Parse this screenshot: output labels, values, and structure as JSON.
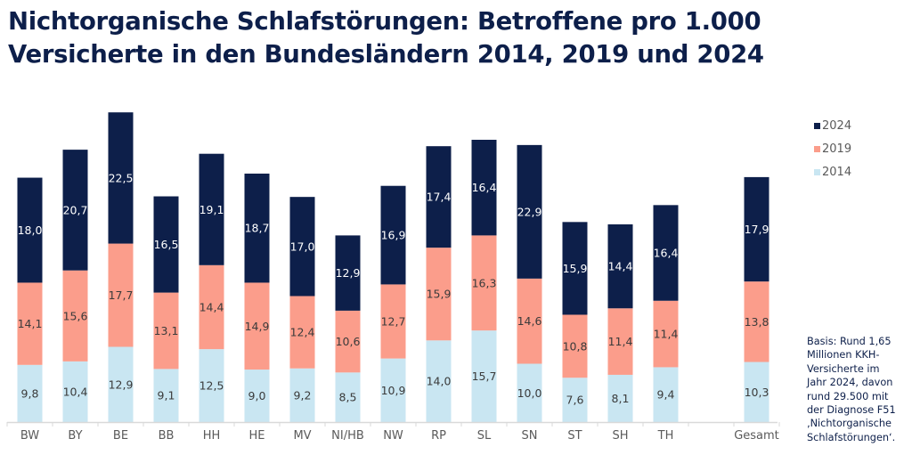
{
  "title_line1": "Nichtorganische Schlafstörungen: Betroffene pro 1.000",
  "title_line2": "Versicherte in den Bundesländern 2014, 2019 und 2024",
  "note": "Basis: Rund 1,65\nMillionen KKH-\nVersicherte im\nJahr 2024, davon\nrund 29.500 mit\nder Diagnose F51\n‚Nichtorganische\nSchlafstörungen‘.",
  "colors": {
    "2014": "#c9e6f2",
    "2019": "#fb9d8b",
    "2024": "#0d1f4a",
    "axis": "#d9d9d9",
    "label_dark_text": "#3b3b3b",
    "label_light_text": "#ffffff"
  },
  "chart_data": {
    "type": "bar",
    "stacked": true,
    "title": "Nichtorganische Schlafstörungen: Betroffene pro 1.000 Versicherte in den Bundesländern 2014, 2019 und 2024",
    "xlabel": "",
    "ylabel": "",
    "grid": false,
    "legend_position": "right",
    "categories": [
      "BW",
      "BY",
      "BE",
      "BB",
      "HH",
      "HE",
      "MV",
      "NI/HB",
      "NW",
      "RP",
      "SL",
      "SN",
      "ST",
      "SH",
      "TH",
      "",
      "Gesamt"
    ],
    "series": [
      {
        "name": "2014",
        "values": [
          9.8,
          10.4,
          12.9,
          9.1,
          12.5,
          9.0,
          9.2,
          8.5,
          10.9,
          14.0,
          15.7,
          10.0,
          7.6,
          8.1,
          9.4,
          null,
          10.3
        ],
        "labels": [
          "9,8",
          "10,4",
          "12,9",
          "9,1",
          "12,5",
          "9,0",
          "9,2",
          "8,5",
          "10,9",
          "14,0",
          "15,7",
          "10,0",
          "7,6",
          "8,1",
          "9,4",
          "",
          "10,3"
        ]
      },
      {
        "name": "2019",
        "values": [
          14.1,
          15.6,
          17.7,
          13.1,
          14.4,
          14.9,
          12.4,
          10.6,
          12.7,
          15.9,
          16.3,
          14.6,
          10.8,
          11.4,
          11.4,
          null,
          13.8
        ],
        "labels": [
          "14,1",
          "15,6",
          "17,7",
          "13,1",
          "14,4",
          "14,9",
          "12,4",
          "10,6",
          "12,7",
          "15,9",
          "16,3",
          "14,6",
          "10,8",
          "11,4",
          "11,4",
          "",
          "13,8"
        ]
      },
      {
        "name": "2024",
        "values": [
          18.0,
          20.7,
          22.5,
          16.5,
          19.1,
          18.7,
          17.0,
          12.9,
          16.9,
          17.4,
          16.4,
          22.9,
          15.9,
          14.4,
          16.4,
          null,
          17.9
        ],
        "labels": [
          "18,0",
          "20,7",
          "22,5",
          "16,5",
          "19,1",
          "18,7",
          "17,0",
          "12,9",
          "16,9",
          "17,4",
          "16,4",
          "22,9",
          "15,9",
          "14,4",
          "16,4",
          "",
          "17,9"
        ]
      }
    ],
    "legend": [
      "2024",
      "2019",
      "2014"
    ],
    "ylim": [
      0,
      55
    ]
  }
}
